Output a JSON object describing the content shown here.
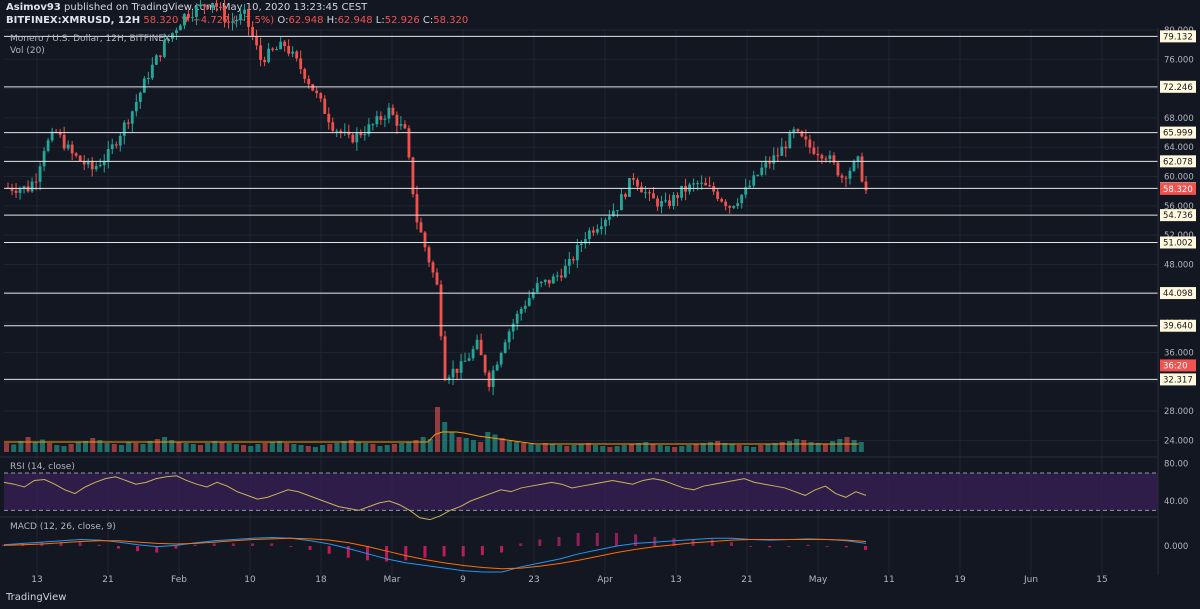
{
  "header": {
    "author": "Asimov93",
    "published": "published on TradingView.com, May 10, 2020 13:23:45 CEST",
    "symbol": "BITFINEX:XMRUSD, 12H",
    "last": "58.320",
    "change": "▼ −4.727 (−7.5%)",
    "o_label": "O:",
    "o": "62.948",
    "h_label": "H:",
    "h": "62.948",
    "l_label": "L:",
    "l": "52.926",
    "c_label": "C:",
    "c": "58.320"
  },
  "legend": {
    "main": "Monero / U.S. Dollar, 12H, BITFINEX",
    "vol": "Vol (20)",
    "rsi": "RSI (14, close)",
    "macd": "MACD (12, 26, close, 9)"
  },
  "footer": {
    "logo": "TradingView"
  },
  "colors": {
    "up": "#26a69a",
    "down": "#ef5350",
    "bg": "#131722",
    "grid": "#1f2431",
    "level": "#e6e6e6",
    "rsi": "#c9b458",
    "macd": "#2196f3",
    "signal": "#ff6d00",
    "label": "#fff8dc"
  },
  "chart_data": [
    {
      "type": "candlestick",
      "title": "Monero / U.S. Dollar, 12H, BITFINEX",
      "x_ticks": [
        "13",
        "21",
        "Feb",
        "10",
        "18",
        "Mar",
        "9",
        "23",
        "Apr",
        "13",
        "21",
        "May",
        "11",
        "19",
        "Jun",
        "15"
      ],
      "y_ticks": [
        "80.000",
        "76.000",
        "72.000",
        "68.000",
        "64.000",
        "60.000",
        "56.000",
        "52.000",
        "48.000",
        "44.000",
        "40.000",
        "36.000",
        "32.000",
        "28.000",
        "24.000"
      ],
      "ylim": [
        22,
        80
      ],
      "horizontal_levels": [
        "79.132",
        "72.246",
        "65.999",
        "62.078",
        "58.394",
        "54.736",
        "51.002",
        "44.098",
        "39.640",
        "32.317"
      ],
      "price_labels": [
        {
          "value": "58.320",
          "kind": "last"
        },
        {
          "value": "36:20",
          "kind": "countdown"
        }
      ],
      "close_path": [
        [
          0,
          58.5
        ],
        [
          6,
          58.4
        ],
        [
          8,
          60
        ],
        [
          10,
          64
        ],
        [
          13,
          66
        ],
        [
          17,
          63
        ],
        [
          22,
          61
        ],
        [
          26,
          63
        ],
        [
          32,
          69
        ],
        [
          36,
          74
        ],
        [
          40,
          78
        ],
        [
          45,
          82
        ],
        [
          52,
          84
        ],
        [
          56,
          81
        ],
        [
          60,
          82
        ],
        [
          64,
          76
        ],
        [
          70,
          78
        ],
        [
          75,
          74
        ],
        [
          80,
          69
        ],
        [
          82,
          67
        ],
        [
          86,
          65
        ],
        [
          92,
          67
        ],
        [
          96,
          69
        ],
        [
          100,
          66
        ],
        [
          103,
          54
        ],
        [
          108,
          45
        ],
        [
          110,
          33
        ],
        [
          114,
          34
        ],
        [
          118,
          37
        ],
        [
          121,
          32
        ],
        [
          125,
          38
        ],
        [
          129,
          42
        ],
        [
          133,
          45
        ],
        [
          137,
          46
        ],
        [
          141,
          48
        ],
        [
          145,
          52
        ],
        [
          149,
          54
        ],
        [
          153,
          56
        ],
        [
          157,
          60
        ],
        [
          161,
          57
        ],
        [
          165,
          56
        ],
        [
          169,
          58
        ],
        [
          173,
          59
        ],
        [
          177,
          58
        ],
        [
          181,
          56
        ],
        [
          185,
          58
        ],
        [
          189,
          61
        ],
        [
          193,
          63
        ],
        [
          197,
          66
        ],
        [
          201,
          64
        ],
        [
          205,
          63
        ],
        [
          209,
          60
        ],
        [
          213,
          62
        ],
        [
          215,
          58
        ]
      ]
    },
    {
      "type": "bar",
      "title": "Vol (20)",
      "values": [
        18,
        15,
        22,
        30,
        20,
        25,
        18,
        14,
        12,
        16,
        20,
        22,
        28,
        24,
        18,
        16,
        14,
        20,
        18,
        16,
        22,
        26,
        30,
        24,
        20,
        18,
        16,
        14,
        18,
        22,
        20,
        18,
        16,
        14,
        12,
        16,
        18,
        20,
        22,
        18,
        16,
        14,
        12,
        10,
        14,
        16,
        18,
        22,
        24,
        20,
        18,
        16,
        12,
        14,
        16,
        18,
        20,
        24,
        30,
        26,
        90,
        60,
        40,
        30,
        28,
        24,
        20,
        40,
        35,
        28,
        22,
        20,
        18,
        16,
        14,
        18,
        16,
        14,
        12,
        14,
        16,
        18,
        14,
        12,
        10,
        12,
        14,
        16,
        18,
        20,
        16,
        14,
        12,
        10,
        12,
        14,
        16,
        18,
        20,
        22,
        18,
        16,
        14,
        12,
        10,
        14,
        16,
        18,
        20,
        22,
        26,
        24,
        20,
        18,
        16,
        22,
        26,
        30,
        24,
        20
      ],
      "ma": [
        20,
        20,
        20,
        20,
        20,
        20,
        20,
        20,
        20,
        20,
        20,
        20,
        20,
        20,
        20,
        20,
        20,
        20,
        20,
        20,
        20,
        20,
        20,
        20,
        20,
        20,
        20,
        20,
        20,
        20,
        20,
        20,
        20,
        20,
        20,
        20,
        20,
        20,
        20,
        20,
        20,
        20,
        20,
        20,
        20,
        20,
        20,
        20,
        20,
        20,
        20,
        20,
        20,
        20,
        20,
        20,
        20,
        20,
        20,
        20,
        35,
        40,
        40,
        40,
        38,
        35,
        32,
        30,
        28,
        26,
        24,
        22,
        20,
        18,
        16,
        16,
        16,
        16,
        16,
        16,
        16,
        16,
        16,
        16,
        16,
        16,
        16,
        16,
        16,
        16,
        16,
        16,
        16,
        16,
        16,
        16,
        16,
        16,
        16,
        16,
        16,
        16,
        16,
        16,
        16,
        16,
        16,
        16,
        16,
        16,
        16,
        16,
        16,
        16,
        16,
        16,
        16,
        16,
        16,
        16
      ]
    },
    {
      "type": "line",
      "title": "RSI (14, close)",
      "y_ticks": [
        "80.00",
        "40.00"
      ],
      "ylim": [
        25,
        85
      ],
      "bands": [
        70,
        30
      ],
      "values": [
        60,
        58,
        55,
        62,
        63,
        58,
        52,
        48,
        55,
        60,
        64,
        66,
        62,
        58,
        60,
        64,
        66,
        67,
        62,
        58,
        55,
        60,
        56,
        50,
        46,
        42,
        44,
        48,
        52,
        50,
        46,
        42,
        38,
        34,
        32,
        30,
        34,
        38,
        40,
        36,
        30,
        22,
        20,
        24,
        30,
        34,
        40,
        44,
        48,
        52,
        50,
        54,
        56,
        58,
        60,
        58,
        54,
        56,
        58,
        60,
        62,
        60,
        58,
        62,
        64,
        62,
        58,
        54,
        52,
        56,
        58,
        60,
        62,
        64,
        60,
        58,
        56,
        54,
        50,
        46,
        52,
        56,
        48,
        44,
        50,
        46
      ]
    },
    {
      "type": "line",
      "title": "MACD (12, 26, close, 9)",
      "y_ticks": [
        "0.000"
      ],
      "ylim": [
        -4,
        4
      ],
      "series": [
        {
          "name": "MACD",
          "values": [
            0.2,
            0.4,
            0.6,
            0.8,
            1.0,
            0.9,
            0.6,
            0.2,
            -0.1,
            0.1,
            0.5,
            0.8,
            1.0,
            1.2,
            1.3,
            1.2,
            0.8,
            0.3,
            -0.4,
            -1.2,
            -2.0,
            -2.6,
            -3.0,
            -3.4,
            -3.8,
            -4.0,
            -4.0,
            -3.2,
            -2.6,
            -2.0,
            -1.2,
            -0.6,
            0.0,
            0.4,
            0.6,
            0.8,
            1.0,
            1.2,
            1.2,
            1.0,
            0.9,
            1.0,
            1.1,
            1.0,
            0.8,
            0.4
          ]
        },
        {
          "name": "Signal",
          "values": [
            0.1,
            0.2,
            0.3,
            0.5,
            0.7,
            0.8,
            0.8,
            0.6,
            0.4,
            0.3,
            0.4,
            0.6,
            0.8,
            1.0,
            1.1,
            1.2,
            1.1,
            0.9,
            0.5,
            -0.1,
            -0.8,
            -1.5,
            -2.1,
            -2.6,
            -3.0,
            -3.3,
            -3.5,
            -3.4,
            -3.1,
            -2.7,
            -2.2,
            -1.6,
            -1.0,
            -0.5,
            -0.1,
            0.2,
            0.5,
            0.7,
            0.9,
            1.0,
            1.0,
            1.0,
            1.0,
            1.0,
            0.9,
            0.7
          ]
        }
      ]
    }
  ]
}
